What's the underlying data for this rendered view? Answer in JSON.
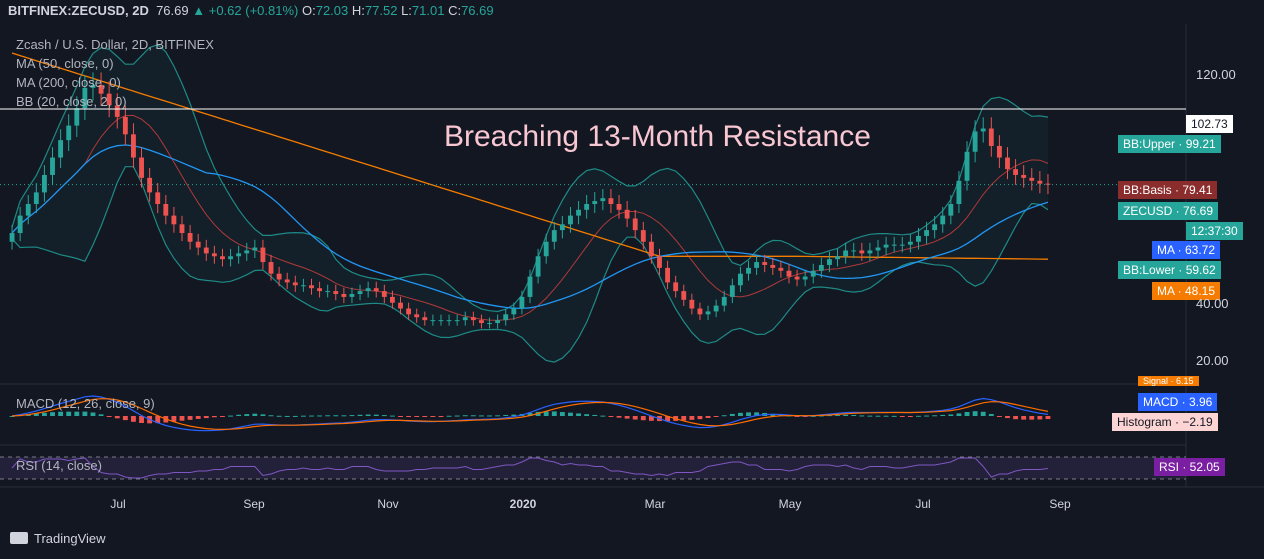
{
  "header": {
    "symbol": "BITFINEX:ZECUSD, 2D",
    "price": "76.69",
    "change": "▲ +0.62 (+0.81%)",
    "o_label": "O:",
    "o_value": "72.03",
    "h_label": "H:",
    "h_value": "77.52",
    "l_label": "L:",
    "l_value": "71.01",
    "c_label": "C:",
    "c_value": "76.69"
  },
  "legend": {
    "title": "Zcash / U.S. Dollar, 2D, BITFINEX",
    "ma50": "MA (50, close, 0)",
    "ma200": "MA (200, close, 0)",
    "bb": "BB (20, close, 2, 0)",
    "macd": "MACD (12, 26, close, 9)",
    "rsi": "RSI (14, close)"
  },
  "annotation": "Breaching 13-Month Resistance",
  "resistance_label": "102.73",
  "tags": [
    {
      "text": "BB:Upper · 99.21",
      "color": "#26a69a"
    },
    {
      "text": "BB:Basis · 79.41",
      "color": "#8b2d2d"
    },
    {
      "text": "ZECUSD · 76.69",
      "color": "#26a69a"
    },
    {
      "text": "12:37:30",
      "color": "#26a69a"
    },
    {
      "text": "MA · 63.72",
      "color": "#2962ff"
    },
    {
      "text": "BB:Lower · 59.62",
      "color": "#26a69a"
    },
    {
      "text": "MA · 48.15",
      "color": "#f57c00"
    },
    {
      "text": "Signal · 6.15",
      "color": "#f57c00"
    },
    {
      "text": "MACD · 3.96",
      "color": "#2962ff"
    },
    {
      "text": "Histogram · −2.19",
      "color": "#fdd4d4"
    },
    {
      "text": "RSI · 52.05",
      "color": "#7b1fa2"
    }
  ],
  "y_ticks": [
    "120.00",
    "40.00",
    "20.00"
  ],
  "x_ticks": [
    {
      "label": "Jul",
      "bold": false
    },
    {
      "label": "Sep",
      "bold": false
    },
    {
      "label": "Nov",
      "bold": false
    },
    {
      "label": "2020",
      "bold": true
    },
    {
      "label": "Mar",
      "bold": false
    },
    {
      "label": "May",
      "bold": false
    },
    {
      "label": "Jul",
      "bold": false
    },
    {
      "label": "Sep",
      "bold": false
    }
  ],
  "brand": "TradingView",
  "colors": {
    "up": "#26a69a",
    "down": "#ef5350",
    "ma50": "#2196f3",
    "ma200": "#f57c00",
    "bb_basis": "#b03a3a",
    "bb_band": "#1e8a86",
    "bb_fill": "rgba(38,166,154,0.06)",
    "resistance": "#ffffff",
    "macd": "#2962ff",
    "signal": "#ff6d00",
    "rsi": "#7e57c2"
  },
  "chart_data": {
    "type": "candlestick",
    "title": "Zcash / U.S. Dollar, 2D, BITFINEX",
    "x_start": "2019-05-24",
    "x_end": "2020-08-27",
    "ylim": [
      8,
      132
    ],
    "resistance_level": 102.73,
    "last_close": 76.69,
    "close_series_2d": [
      60,
      66,
      70,
      74,
      80,
      86,
      92,
      97,
      103,
      110,
      111,
      108,
      104,
      100,
      94,
      86,
      79,
      74,
      70,
      66,
      63,
      60,
      57,
      55,
      53,
      52,
      51,
      52,
      53,
      54,
      55,
      50,
      46,
      44,
      43,
      42,
      42,
      41,
      40,
      40,
      39,
      38,
      39,
      40,
      41,
      40,
      38,
      36,
      34,
      32,
      31,
      30,
      30,
      30,
      30,
      30,
      31,
      30,
      29,
      29,
      30,
      32,
      34,
      38,
      45,
      52,
      57,
      61,
      63,
      66,
      68,
      70,
      71,
      72,
      70,
      68,
      65,
      61,
      57,
      52,
      48,
      43,
      40,
      37,
      34,
      32,
      33,
      35,
      38,
      42,
      46,
      48,
      50,
      49,
      48,
      47,
      45,
      44,
      45,
      47,
      49,
      51,
      52,
      54,
      54,
      53,
      54,
      55,
      56,
      56,
      56,
      57,
      59,
      61,
      63,
      66,
      70,
      78,
      88,
      95,
      96,
      90,
      86,
      82,
      80,
      79,
      78,
      77,
      76.69
    ],
    "ma50_final": 63.72,
    "ma200_final": 48.15,
    "bb_upper_final": 99.21,
    "bb_basis_final": 79.41,
    "bb_lower_final": 59.62,
    "macd": {
      "macd": 3.96,
      "signal": 6.15,
      "histogram": -2.19
    },
    "rsi": 52.05
  }
}
